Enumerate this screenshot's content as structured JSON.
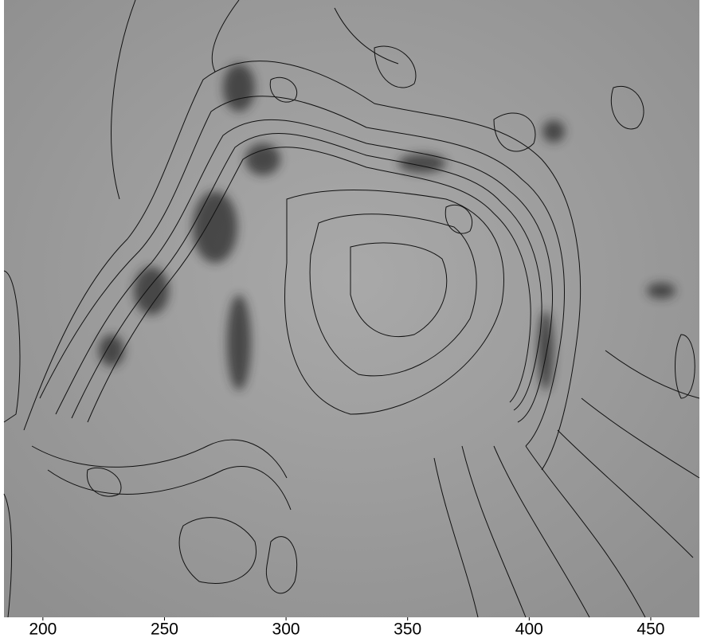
{
  "chart_data": {
    "type": "contour",
    "xlim": [
      184,
      470
    ],
    "xticks": [
      200,
      250,
      300,
      350,
      400,
      450
    ]
  }
}
